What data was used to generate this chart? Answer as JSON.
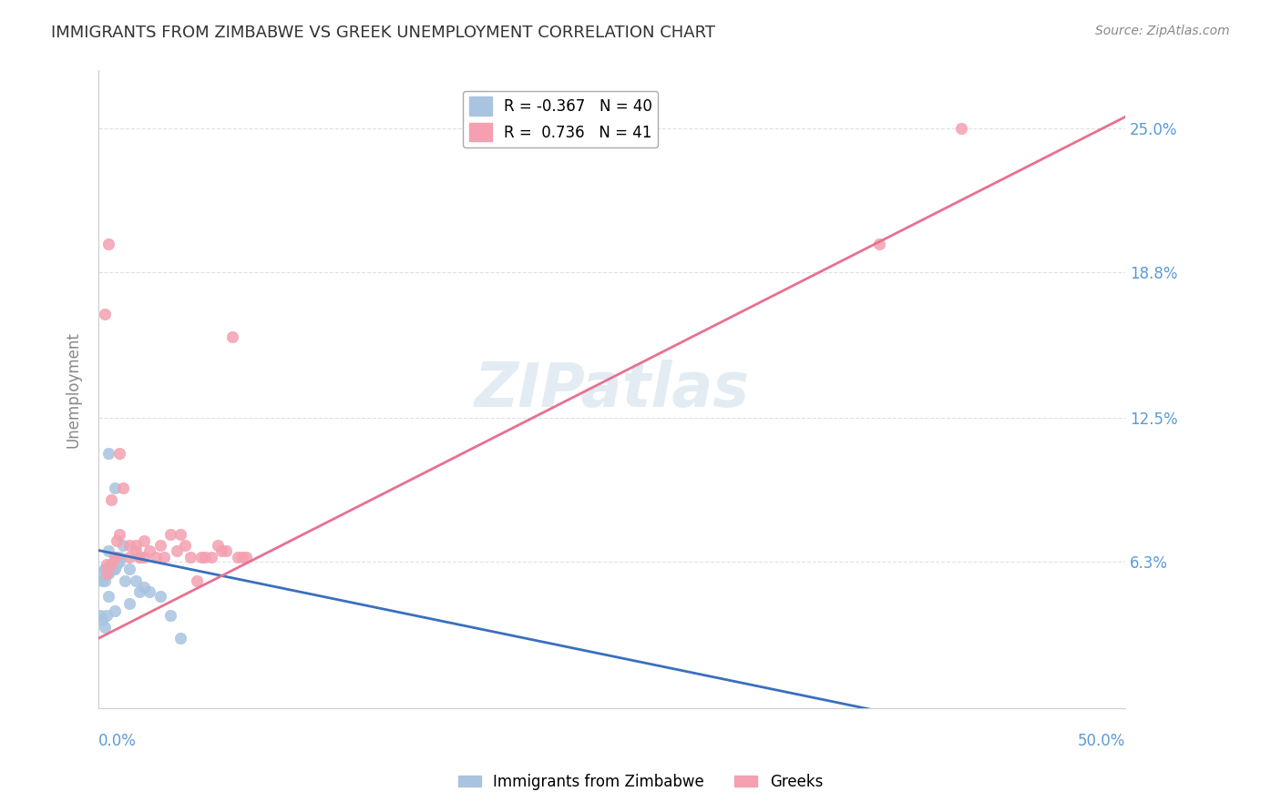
{
  "title": "IMMIGRANTS FROM ZIMBABWE VS GREEK UNEMPLOYMENT CORRELATION CHART",
  "source": "Source: ZipAtlas.com",
  "ylabel": "Unemployment",
  "xlim": [
    0.0,
    0.5
  ],
  "ylim": [
    0.0,
    0.275
  ],
  "ytick_labels": [
    "6.3%",
    "12.5%",
    "18.8%",
    "25.0%"
  ],
  "ytick_values": [
    0.063,
    0.125,
    0.188,
    0.25
  ],
  "legend_entries": [
    {
      "label": "R = -0.367   N = 40",
      "color": "#a8c4e0"
    },
    {
      "label": "R =  0.736   N = 41",
      "color": "#f4a0b0"
    }
  ],
  "footer_labels": [
    "Immigrants from Zimbabwe",
    "Greeks"
  ],
  "footer_colors": [
    "#a8c4e0",
    "#f4a0b0"
  ],
  "blue_scatter_x": [
    0.005,
    0.008,
    0.003,
    0.01,
    0.006,
    0.004,
    0.002,
    0.007,
    0.009,
    0.005,
    0.003,
    0.006,
    0.004,
    0.008,
    0.001,
    0.012,
    0.015,
    0.02,
    0.025,
    0.01,
    0.005,
    0.008,
    0.003,
    0.006,
    0.018,
    0.022,
    0.03,
    0.035,
    0.04,
    0.02,
    0.015,
    0.008,
    0.004,
    0.002,
    0.001,
    0.007,
    0.009,
    0.013,
    0.005,
    0.003
  ],
  "blue_scatter_y": [
    0.11,
    0.095,
    0.06,
    0.065,
    0.062,
    0.058,
    0.055,
    0.06,
    0.065,
    0.068,
    0.06,
    0.062,
    0.058,
    0.065,
    0.04,
    0.07,
    0.06,
    0.05,
    0.05,
    0.063,
    0.058,
    0.06,
    0.055,
    0.062,
    0.055,
    0.052,
    0.048,
    0.04,
    0.03,
    0.065,
    0.045,
    0.042,
    0.04,
    0.038,
    0.058,
    0.06,
    0.062,
    0.055,
    0.048,
    0.035
  ],
  "pink_scatter_x": [
    0.005,
    0.008,
    0.01,
    0.003,
    0.006,
    0.004,
    0.009,
    0.012,
    0.015,
    0.018,
    0.022,
    0.025,
    0.03,
    0.035,
    0.04,
    0.045,
    0.05,
    0.055,
    0.06,
    0.065,
    0.07,
    0.02,
    0.015,
    0.01,
    0.008,
    0.006,
    0.004,
    0.018,
    0.022,
    0.028,
    0.032,
    0.038,
    0.042,
    0.048,
    0.052,
    0.058,
    0.062,
    0.068,
    0.072,
    0.38,
    0.42
  ],
  "pink_scatter_y": [
    0.2,
    0.065,
    0.11,
    0.17,
    0.09,
    0.062,
    0.072,
    0.095,
    0.065,
    0.07,
    0.065,
    0.068,
    0.07,
    0.075,
    0.075,
    0.065,
    0.065,
    0.065,
    0.068,
    0.16,
    0.065,
    0.065,
    0.07,
    0.075,
    0.065,
    0.062,
    0.058,
    0.068,
    0.072,
    0.065,
    0.065,
    0.068,
    0.07,
    0.055,
    0.065,
    0.07,
    0.068,
    0.065,
    0.065,
    0.2,
    0.25
  ],
  "blue_line_x": [
    0.0,
    0.4
  ],
  "blue_line_y": [
    0.068,
    -0.005
  ],
  "pink_line_x": [
    0.0,
    0.5
  ],
  "pink_line_y": [
    0.03,
    0.255
  ],
  "watermark": "ZIPatlas",
  "background_color": "#ffffff",
  "grid_color": "#e0e0e0",
  "scatter_size": 80,
  "title_fontsize": 13,
  "tick_label_color": "#5b9bd5"
}
